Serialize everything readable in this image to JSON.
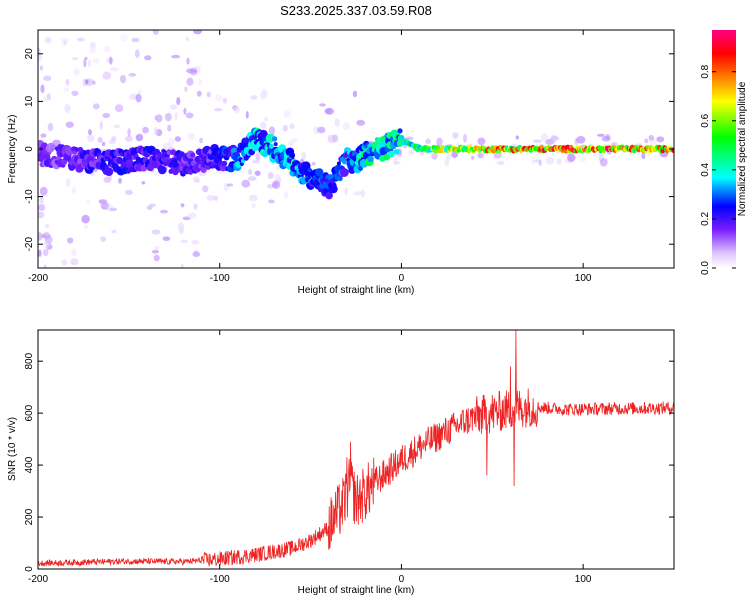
{
  "title": "S233.2025.337.03.59.R08",
  "chart_data": [
    {
      "type": "heatmap",
      "title": "S233.2025.337.03.59.R08",
      "xlabel": "Height of straight line (km)",
      "ylabel": "Frequency (Hz)",
      "xlim": [
        -200,
        150
      ],
      "ylim": [
        -25,
        25
      ],
      "xticks": [
        -200,
        -100,
        0,
        100
      ],
      "xtick_labels": [
        "-200",
        "-100",
        "0",
        "100"
      ],
      "yticks": [
        -20,
        -10,
        0,
        10,
        20
      ],
      "ytick_labels": [
        "-20",
        "-10",
        "0",
        "10",
        "20"
      ],
      "colorbar": {
        "label": "Normalized spectral amplitude",
        "range": [
          0,
          0.97
        ],
        "ticks": [
          0.0,
          0.2,
          0.4,
          0.6,
          0.8
        ],
        "tick_labels": [
          "0.0",
          "0.2",
          "0.4",
          "0.6",
          "0.8"
        ],
        "colors": [
          "#ffffff",
          "#7a1fff",
          "#0000ff",
          "#00ffff",
          "#00ff00",
          "#ffff00",
          "#ff8000",
          "#ff0000",
          "#ff0080"
        ]
      },
      "ridge": {
        "description_free_samples_x": [
          -200,
          -180,
          -160,
          -140,
          -120,
          -105,
          -90,
          -80,
          -70,
          -60,
          -50,
          -40,
          -30,
          -25,
          -20,
          -15,
          -10,
          -5,
          0,
          5,
          10,
          20,
          40,
          60,
          80,
          100,
          120,
          150
        ],
        "freq": [
          -1,
          -2,
          -3,
          -2,
          -3,
          -2,
          -2,
          2,
          0,
          -3,
          -6,
          -8,
          -2,
          -3,
          -1,
          0,
          0,
          1,
          2,
          1,
          0,
          0,
          0,
          0,
          0,
          0,
          0,
          0
        ],
        "amplitude": [
          0.15,
          0.2,
          0.22,
          0.22,
          0.2,
          0.2,
          0.3,
          0.35,
          0.35,
          0.35,
          0.3,
          0.25,
          0.3,
          0.35,
          0.4,
          0.42,
          0.42,
          0.42,
          0.45,
          0.45,
          0.5,
          0.6,
          0.7,
          0.75,
          0.8,
          0.82,
          0.8,
          0.75
        ]
      }
    },
    {
      "type": "line",
      "xlabel": "Height of straight line (km)",
      "ylabel": "SNR (10 * v/v)",
      "xlim": [
        -200,
        150
      ],
      "ylim": [
        0,
        920
      ],
      "xticks": [
        -200,
        -100,
        0,
        100
      ],
      "xtick_labels": [
        "-200",
        "-100",
        "0",
        "100"
      ],
      "yticks": [
        0,
        200,
        400,
        600,
        800
      ],
      "ytick_labels": [
        "0",
        "200",
        "400",
        "600",
        "800"
      ],
      "color": "#ee2222",
      "envelope": {
        "x": [
          -200,
          -150,
          -120,
          -100,
          -80,
          -60,
          -50,
          -40,
          -32,
          -28,
          -25,
          -20,
          -15,
          -10,
          0,
          10,
          20,
          30,
          40,
          50,
          60,
          70,
          80,
          90,
          100,
          120,
          150
        ],
        "y": [
          22,
          30,
          28,
          38,
          55,
          80,
          110,
          160,
          250,
          330,
          260,
          290,
          330,
          360,
          420,
          470,
          510,
          550,
          585,
          600,
          615,
          625,
          620,
          615,
          615,
          618,
          620
        ]
      },
      "spikes": [
        {
          "x": -28,
          "y": 490
        },
        {
          "x": -30,
          "y": 430
        },
        {
          "x": 50,
          "y": 670
        },
        {
          "x": 48,
          "y": 560
        },
        {
          "x": 60,
          "y": 780
        },
        {
          "x": 63,
          "y": 920
        },
        {
          "x": 62,
          "y": 320
        },
        {
          "x": 47,
          "y": 360
        }
      ]
    }
  ]
}
